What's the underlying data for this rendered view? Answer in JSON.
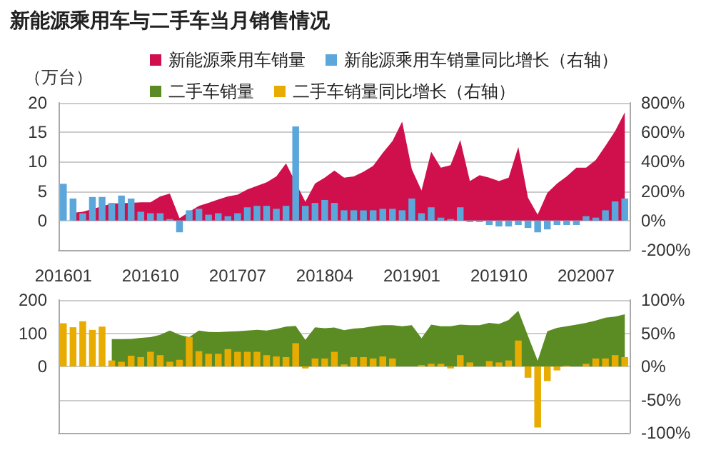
{
  "chart_data": [
    {
      "type": "bar",
      "title": "新能源乘用车与二手车当月销售情况",
      "ylabel": "（万台）",
      "categories": [
        "201601",
        null,
        null,
        null,
        null,
        null,
        null,
        null,
        null,
        "201610",
        null,
        null,
        null,
        null,
        null,
        null,
        null,
        null,
        "201707",
        null,
        null,
        null,
        null,
        null,
        null,
        null,
        null,
        "201804",
        null,
        null,
        null,
        null,
        null,
        null,
        null,
        null,
        "201901",
        null,
        null,
        null,
        null,
        null,
        null,
        null,
        null,
        "201910",
        null,
        null,
        null,
        null,
        null,
        null,
        null,
        null,
        "202007",
        null,
        null,
        null,
        null
      ],
      "series": [
        {
          "name": "新能源乘用车销量",
          "type": "area",
          "color": "#d0104c",
          "values": [
            null,
            1.3,
            1.5,
            null,
            null,
            2.9,
            null,
            3.0,
            3.1,
            3.1,
            4.1,
            4.6,
            0.4,
            1.5,
            2.5,
            3.0,
            3.6,
            4.1,
            4.4,
            5.3,
            5.9,
            6.5,
            7.5,
            9.7,
            null,
            3.2,
            6.3,
            7.3,
            8.5,
            7.3,
            7.5,
            8.3,
            9.3,
            11.5,
            13.5,
            16.8,
            8.7,
            5.1,
            11.7,
            9.0,
            9.4,
            13.7,
            6.7,
            7.7,
            7.3,
            6.7,
            7.3,
            12.5,
            3.9,
            1.0,
            4.7,
            6.3,
            7.5,
            9.0,
            9.0,
            10.3,
            12.7,
            15.2,
            18.4
          ]
        },
        {
          "name": "新能源乘用车销量同比增长（右轴）",
          "axis": "y2",
          "color": "#5ba7db",
          "values": [
            250,
            150,
            50,
            160,
            160,
            120,
            170,
            150,
            60,
            50,
            50,
            10,
            -80,
            70,
            80,
            40,
            50,
            30,
            50,
            90,
            100,
            100,
            80,
            100,
            640,
            100,
            120,
            140,
            120,
            70,
            70,
            70,
            70,
            80,
            80,
            70,
            150,
            50,
            90,
            20,
            10,
            90,
            -10,
            -10,
            -30,
            -40,
            -40,
            -30,
            -50,
            -80,
            -60,
            -30,
            -30,
            -30,
            30,
            20,
            70,
            130,
            150
          ]
        }
      ],
      "ylim": [
        -5,
        20
      ],
      "yticks": [
        {
          "value": -5,
          "label": null
        },
        0,
        5,
        10,
        15,
        20
      ],
      "y2lim": [
        -200,
        800
      ],
      "y2ticks": [
        {
          "value": -200,
          "label": "-200%"
        },
        {
          "value": 0,
          "label": "0%"
        },
        {
          "value": 200,
          "label": "200%"
        },
        {
          "value": 400,
          "label": "400%"
        },
        {
          "value": 600,
          "label": "600%"
        },
        {
          "value": 800,
          "label": "800%"
        }
      ],
      "grid": "y",
      "legend": "top"
    },
    {
      "type": "bar",
      "categories": [
        "201601",
        null,
        null,
        null,
        null,
        null,
        null,
        null,
        null,
        "201610",
        null,
        null,
        null,
        null,
        null,
        null,
        null,
        null,
        "201707",
        null,
        null,
        null,
        null,
        null,
        null,
        null,
        null,
        "201804",
        null,
        null,
        null,
        null,
        null,
        null,
        null,
        null,
        "201901",
        null,
        null,
        null,
        null,
        null,
        null,
        null,
        null,
        "201910",
        null,
        null,
        null,
        null,
        null,
        null,
        null,
        null,
        "202007",
        null,
        null,
        null,
        null
      ],
      "series": [
        {
          "name": "二手车销量",
          "type": "area",
          "color": "#5a8c23",
          "values": [
            null,
            null,
            null,
            null,
            null,
            82,
            82,
            83,
            86,
            88,
            95,
            108,
            95,
            88,
            108,
            104,
            103,
            105,
            106,
            108,
            110,
            108,
            113,
            120,
            122,
            80,
            118,
            115,
            117,
            109,
            114,
            116,
            121,
            124,
            124,
            121,
            124,
            85,
            126,
            121,
            121,
            126,
            124,
            124,
            131,
            128,
            140,
            168,
            92,
            17,
            106,
            116,
            121,
            126,
            131,
            138,
            147,
            150,
            157
          ]
        },
        {
          "name": "二手车销量同比增长（右轴）",
          "axis": "y2",
          "color": "#e8ac00",
          "values": [
            65,
            59,
            68,
            55,
            60,
            9,
            7,
            16,
            14,
            22,
            17,
            7,
            10,
            44,
            23,
            19,
            19,
            26,
            22,
            22,
            22,
            17,
            15,
            14,
            35,
            -3,
            12,
            12,
            22,
            3,
            14,
            14,
            12,
            15,
            12,
            0,
            0,
            2,
            4,
            4,
            -3,
            17,
            6,
            0,
            8,
            6,
            9,
            39,
            -17,
            -92,
            -22,
            -6,
            1,
            0,
            4,
            12,
            12,
            17,
            14
          ]
        }
      ],
      "ylim": [
        -200,
        200
      ],
      "yticks": [
        {
          "value": -200,
          "label": null
        },
        {
          "value": -100,
          "label": null
        },
        0,
        100,
        200
      ],
      "y2lim": [
        -100,
        100
      ],
      "y2ticks": [
        {
          "value": -100,
          "label": "-100%"
        },
        {
          "value": -50,
          "label": "-50%"
        },
        {
          "value": 0,
          "label": "0%"
        },
        {
          "value": 50,
          "label": "50%"
        },
        {
          "value": 100,
          "label": "100%"
        }
      ],
      "grid": "y",
      "legend": "top",
      "tick_labels": "y"
    }
  ]
}
